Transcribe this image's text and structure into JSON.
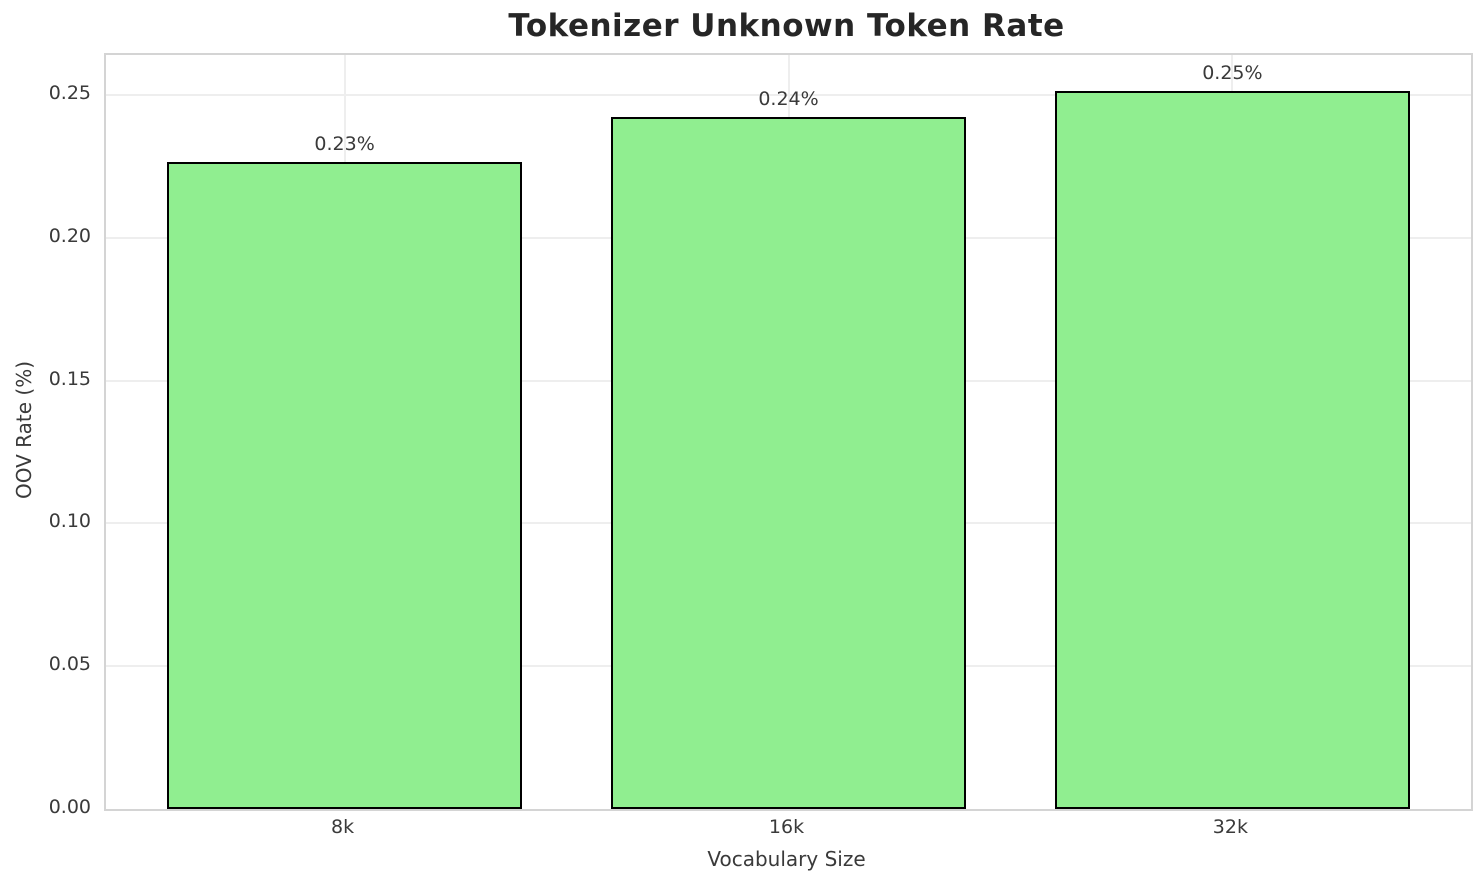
{
  "chart_data": {
    "type": "bar",
    "title": "Tokenizer Unknown Token Rate",
    "categories": [
      "8k",
      "16k",
      "32k"
    ],
    "values": [
      0.2265,
      0.2423,
      0.2515
    ],
    "bar_labels": [
      "0.23%",
      "0.24%",
      "0.25%"
    ],
    "xlabel": "Vocabulary Size",
    "ylabel": "OOV Rate (%)",
    "ylim": [
      0,
      0.264
    ],
    "yticks": [
      0,
      0.05,
      0.1,
      0.15,
      0.2,
      0.25
    ],
    "ytick_labels": [
      "0.00",
      "0.05",
      "0.10",
      "0.15",
      "0.20",
      "0.25"
    ],
    "grid": true,
    "legend": false,
    "bar_width_fraction": 0.8,
    "colors": {
      "bar_fill": "#90EE90",
      "bar_edge": "#000000",
      "grid": "#eeeeee",
      "spine": "#d4d4d4",
      "tick_text": "#3a3a3a",
      "title_text": "#262626",
      "background": "#ffffff"
    }
  }
}
